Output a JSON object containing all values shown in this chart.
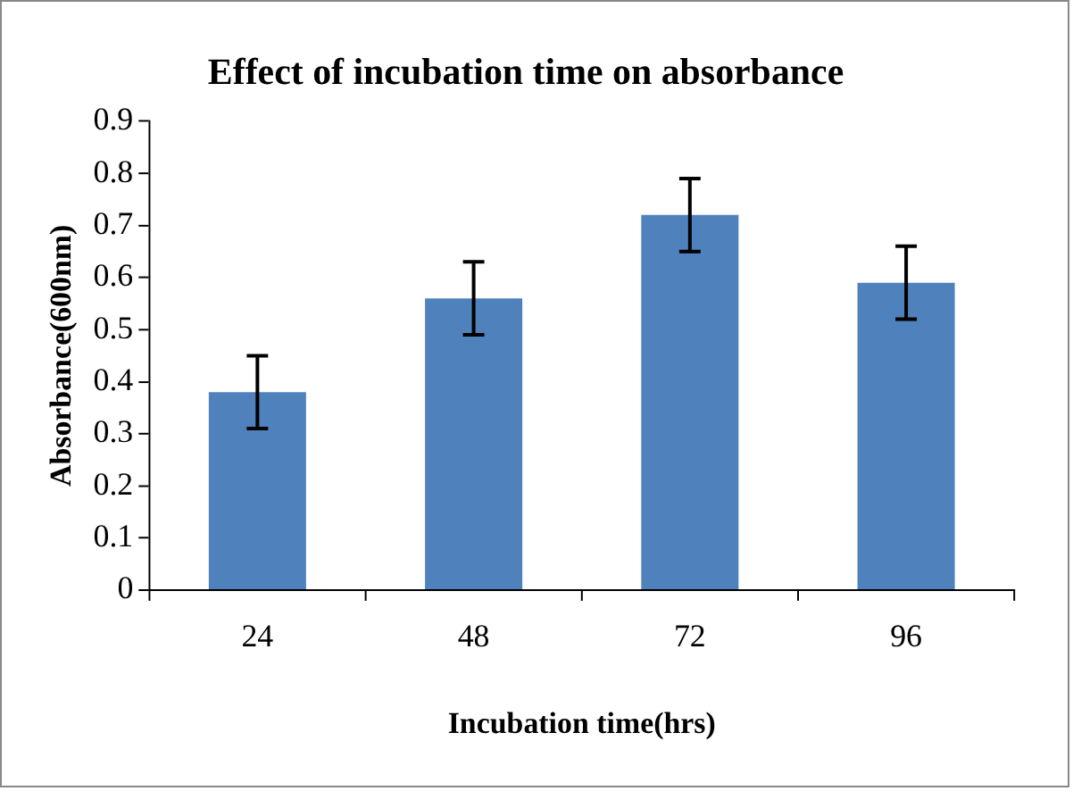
{
  "chart_data": {
    "type": "bar",
    "title": "Effect of incubation time on absorbance",
    "xlabel": "Incubation time(hrs)",
    "ylabel": "Absorbance(600nm)",
    "categories": [
      "24",
      "48",
      "72",
      "96"
    ],
    "values": [
      0.38,
      0.56,
      0.72,
      0.59
    ],
    "errors": [
      0.07,
      0.07,
      0.07,
      0.07
    ],
    "color": "#4f81bd",
    "ylim": [
      0,
      0.9
    ],
    "yticks": [
      0,
      0.1,
      0.2,
      0.3,
      0.4,
      0.5,
      0.6,
      0.7,
      0.8,
      0.9
    ],
    "grid": false,
    "legend": false
  }
}
